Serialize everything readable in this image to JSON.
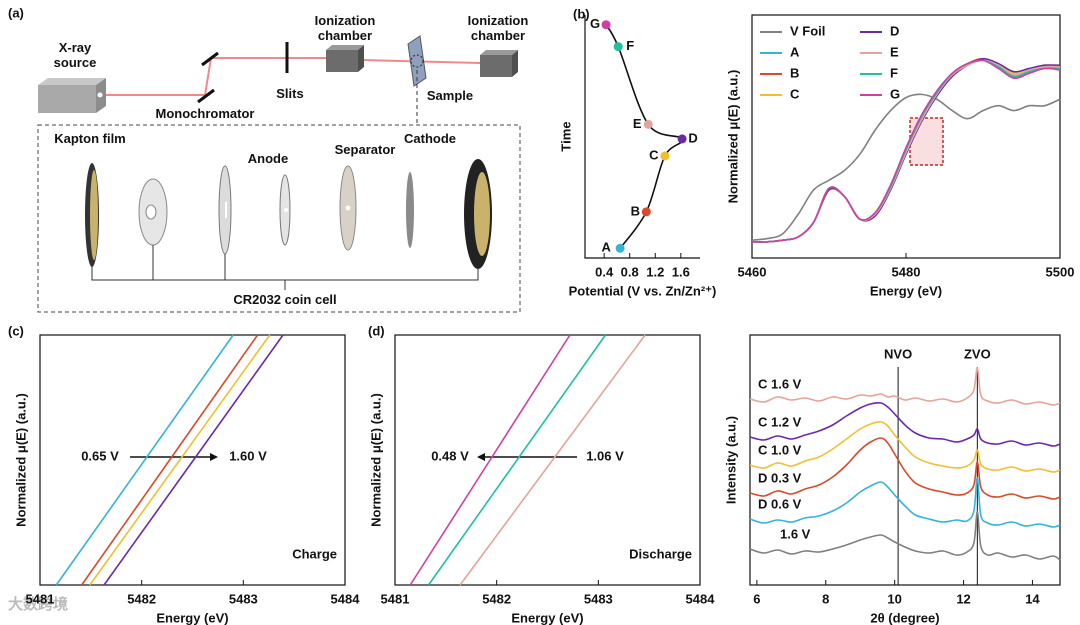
{
  "diagram": {
    "panel_label": "(a)",
    "source": "X-ray source",
    "monochromator": "Monochromator",
    "slits": "Slits",
    "chamber_1": "Ionization chamber",
    "chamber_2": "Ionization chamber",
    "sample": "Sample",
    "kapton": "Kapton film",
    "anode": "Anode",
    "separator": "Separator",
    "cathode": "Cathode",
    "caption": "CR2032 coin cell"
  },
  "watermark": "大数跨境",
  "chart_data": [
    {
      "type": "line",
      "panel_label": "(b)",
      "frame": "open",
      "xlabel": "Potential (V vs. Zn/Zn²⁺)",
      "ylabel": "Time",
      "x": [
        0.65,
        1.06,
        1.35,
        1.62,
        1.09,
        0.62,
        0.43
      ],
      "series": [
        {
          "color": "#111111",
          "values": [
            0.4,
            1.9,
            4.2,
            4.9,
            5.5,
            8.7,
            9.6
          ]
        }
      ],
      "point_labels": [
        "A",
        "B",
        "C",
        "D",
        "E",
        "F",
        "G"
      ],
      "point_colors": [
        "#33b4d8",
        "#d84a2a",
        "#f0c030",
        "#6a2aa8",
        "#e4a49a",
        "#20c0a0",
        "#d040a0"
      ],
      "xlim": [
        0.1,
        1.9
      ],
      "xticks": [
        0.4,
        0.8,
        1.2,
        1.6
      ],
      "ylim": [
        0,
        10
      ]
    },
    {
      "type": "line",
      "frame": "box",
      "legend": "upper left",
      "xlabel": "Energy (eV)",
      "ylabel": "Normalized μ(E) (a.u.)",
      "x": [
        5460,
        5462,
        5464,
        5466,
        5468,
        5470,
        5472,
        5474,
        5476,
        5478,
        5480,
        5482,
        5484,
        5486,
        5488,
        5490,
        5492,
        5494,
        5496,
        5498,
        5500
      ],
      "series": [
        {
          "name": "V Foil",
          "color": "#808080",
          "values": [
            0.01,
            0.02,
            0.05,
            0.17,
            0.32,
            0.38,
            0.44,
            0.54,
            0.69,
            0.81,
            0.89,
            0.91,
            0.88,
            0.81,
            0.76,
            0.81,
            0.84,
            0.81,
            0.84,
            0.84,
            0.88
          ]
        },
        {
          "name": "A",
          "color": "#33b4d8",
          "values": [
            0.0,
            0.0,
            0.01,
            0.03,
            0.12,
            0.33,
            0.28,
            0.14,
            0.18,
            0.35,
            0.58,
            0.78,
            0.93,
            1.04,
            1.1,
            1.12,
            1.08,
            1.02,
            1.05,
            1.08,
            1.07
          ]
        },
        {
          "name": "B",
          "color": "#d84a2a",
          "values": [
            0.0,
            0.0,
            0.01,
            0.03,
            0.12,
            0.33,
            0.28,
            0.14,
            0.17,
            0.33,
            0.56,
            0.76,
            0.92,
            1.03,
            1.1,
            1.13,
            1.09,
            1.03,
            1.06,
            1.08,
            1.08
          ]
        },
        {
          "name": "C",
          "color": "#f0c030",
          "values": [
            0.0,
            0.0,
            0.01,
            0.03,
            0.12,
            0.32,
            0.28,
            0.14,
            0.17,
            0.33,
            0.55,
            0.75,
            0.91,
            1.03,
            1.09,
            1.12,
            1.09,
            1.04,
            1.06,
            1.09,
            1.08
          ]
        },
        {
          "name": "D",
          "color": "#6a2aa8",
          "values": [
            0.0,
            0.0,
            0.01,
            0.03,
            0.12,
            0.32,
            0.28,
            0.14,
            0.16,
            0.32,
            0.54,
            0.74,
            0.9,
            1.02,
            1.09,
            1.13,
            1.1,
            1.05,
            1.07,
            1.09,
            1.09
          ]
        },
        {
          "name": "E",
          "color": "#e4a49a",
          "values": [
            0.0,
            0.0,
            0.01,
            0.03,
            0.12,
            0.33,
            0.28,
            0.14,
            0.17,
            0.33,
            0.55,
            0.75,
            0.91,
            1.03,
            1.09,
            1.12,
            1.09,
            1.03,
            1.06,
            1.08,
            1.08
          ]
        },
        {
          "name": "F",
          "color": "#20c0a0",
          "values": [
            0.0,
            0.0,
            0.01,
            0.03,
            0.12,
            0.33,
            0.28,
            0.14,
            0.18,
            0.34,
            0.57,
            0.77,
            0.92,
            1.04,
            1.1,
            1.12,
            1.08,
            1.02,
            1.05,
            1.07,
            1.07
          ]
        },
        {
          "name": "G",
          "color": "#d040a0",
          "values": [
            0.0,
            0.0,
            0.01,
            0.03,
            0.12,
            0.33,
            0.28,
            0.14,
            0.18,
            0.35,
            0.58,
            0.78,
            0.93,
            1.04,
            1.1,
            1.12,
            1.07,
            1.01,
            1.04,
            1.07,
            1.06
          ]
        }
      ],
      "xlim": [
        5460,
        5500
      ],
      "xticks": [
        5460,
        5480,
        5500
      ],
      "ylim": [
        -0.1,
        1.4
      ]
    },
    {
      "type": "line",
      "panel_label": "(c)",
      "frame": "box",
      "xlabel": "Energy (eV)",
      "ylabel": "Normalized μ(E) (a.u.)",
      "series": [
        {
          "color": "#33b4d8",
          "x": [
            5481.16,
            5482.9
          ],
          "values": [
            0.4,
            1.0
          ]
        },
        {
          "color": "#d84a2a",
          "x": [
            5481.41,
            5483.14
          ],
          "values": [
            0.4,
            1.0
          ]
        },
        {
          "color": "#f0c030",
          "x": [
            5481.49,
            5483.26
          ],
          "values": [
            0.4,
            1.0
          ]
        },
        {
          "color": "#6a2aa8",
          "x": [
            5481.63,
            5483.39
          ],
          "values": [
            0.4,
            1.0
          ]
        }
      ],
      "annotations": [
        "0.65 V",
        "1.60 V",
        "Charge"
      ],
      "xlim": [
        5481,
        5484
      ],
      "xticks": [
        5481,
        5482,
        5483,
        5484
      ],
      "ylim": [
        0.4,
        1.0
      ]
    },
    {
      "type": "line",
      "panel_label": "(d)",
      "frame": "box",
      "xlabel": "Energy (eV)",
      "ylabel": "Normalized μ(E) (a.u.)",
      "series": [
        {
          "color": "#d040a0",
          "x": [
            5481.15,
            5482.72
          ],
          "values": [
            0.4,
            1.0
          ]
        },
        {
          "color": "#20c0a0",
          "x": [
            5481.33,
            5483.07
          ],
          "values": [
            0.4,
            1.0
          ]
        },
        {
          "color": "#e4a49a",
          "x": [
            5481.64,
            5483.46
          ],
          "values": [
            0.4,
            1.0
          ]
        }
      ],
      "annotations": [
        "0.48 V",
        "1.06 V",
        "Discharge"
      ],
      "xlim": [
        5481,
        5484
      ],
      "xticks": [
        5481,
        5482,
        5483,
        5484
      ],
      "ylim": [
        0.4,
        1.0
      ]
    },
    {
      "type": "line",
      "frame": "box",
      "series_labels": true,
      "xlabel": "2θ (degree)",
      "ylabel": "Intensity (a.u.)",
      "x": [
        5.8,
        6.2,
        6.6,
        7.0,
        7.4,
        7.8,
        8.2,
        8.6,
        9.0,
        9.3,
        9.6,
        9.8,
        10.0,
        10.3,
        10.6,
        11.0,
        11.4,
        11.8,
        12.1,
        12.3,
        12.4,
        12.5,
        12.7,
        13.0,
        13.4,
        13.8,
        14.2,
        14.6,
        14.8
      ],
      "series": [
        {
          "name": "C 1.6 V",
          "color": "#e4a49a",
          "values": [
            18.6,
            18.3,
            18.8,
            18.5,
            18.7,
            18.4,
            18.8,
            18.6,
            19.0,
            18.9,
            19.1,
            18.8,
            18.9,
            18.5,
            18.7,
            18.4,
            18.6,
            18.3,
            18.7,
            19.5,
            21.7,
            19.0,
            18.4,
            18.2,
            18.5,
            18.1,
            18.3,
            18.0,
            18.2
          ]
        },
        {
          "name": "C 1.2 V",
          "color": "#6a2aa8",
          "values": [
            14.8,
            14.5,
            14.9,
            14.6,
            15.0,
            15.4,
            16.0,
            16.9,
            17.7,
            18.1,
            18.2,
            17.8,
            17.1,
            16.0,
            15.2,
            14.7,
            14.6,
            14.3,
            14.6,
            15.0,
            15.6,
            14.6,
            14.2,
            14.1,
            14.4,
            14.0,
            14.2,
            13.9,
            14.1
          ]
        },
        {
          "name": "C 1.0 V",
          "color": "#f0c030",
          "values": [
            12.0,
            11.7,
            12.2,
            11.9,
            12.4,
            12.8,
            13.6,
            14.6,
            15.6,
            16.1,
            16.3,
            15.9,
            15.0,
            13.8,
            12.8,
            12.2,
            11.9,
            11.7,
            11.9,
            12.5,
            13.5,
            12.1,
            11.6,
            11.5,
            11.8,
            11.4,
            11.6,
            11.3,
            11.5
          ]
        },
        {
          "name": "D 0.3 V",
          "color": "#d84a2a",
          "values": [
            9.2,
            8.9,
            9.4,
            9.1,
            9.6,
            10.0,
            10.8,
            12.0,
            13.5,
            14.3,
            14.7,
            14.2,
            13.1,
            11.4,
            10.2,
            9.6,
            9.3,
            9.0,
            9.2,
            10.0,
            12.3,
            9.8,
            9.0,
            8.8,
            9.1,
            8.7,
            8.9,
            8.6,
            8.8
          ]
        },
        {
          "name": "D 0.6 V",
          "color": "#33b4d8",
          "values": [
            6.6,
            6.2,
            6.5,
            6.3,
            6.7,
            6.9,
            7.4,
            8.2,
            9.3,
            9.9,
            10.3,
            9.8,
            9.0,
            7.9,
            7.0,
            6.6,
            6.3,
            6.5,
            6.4,
            7.4,
            10.7,
            7.0,
            6.2,
            6.0,
            6.3,
            5.9,
            6.1,
            5.8,
            6.0
          ]
        },
        {
          "name": "1.6 V",
          "color": "#808080",
          "values": [
            3.6,
            3.2,
            3.5,
            3.1,
            3.4,
            3.3,
            3.6,
            4.0,
            4.5,
            4.8,
            5.0,
            4.7,
            4.3,
            3.8,
            3.4,
            3.2,
            3.4,
            3.0,
            3.3,
            4.2,
            7.3,
            3.9,
            3.0,
            3.2,
            2.8,
            3.0,
            2.6,
            2.9,
            2.5
          ]
        }
      ],
      "vlines": [
        {
          "label": "NVO",
          "x": 10.1
        },
        {
          "label": "ZVO",
          "x": 12.4
        }
      ],
      "xlim": [
        5.8,
        14.8
      ],
      "xticks": [
        6,
        8,
        10,
        12,
        14
      ],
      "ylim": [
        0,
        25
      ]
    }
  ]
}
